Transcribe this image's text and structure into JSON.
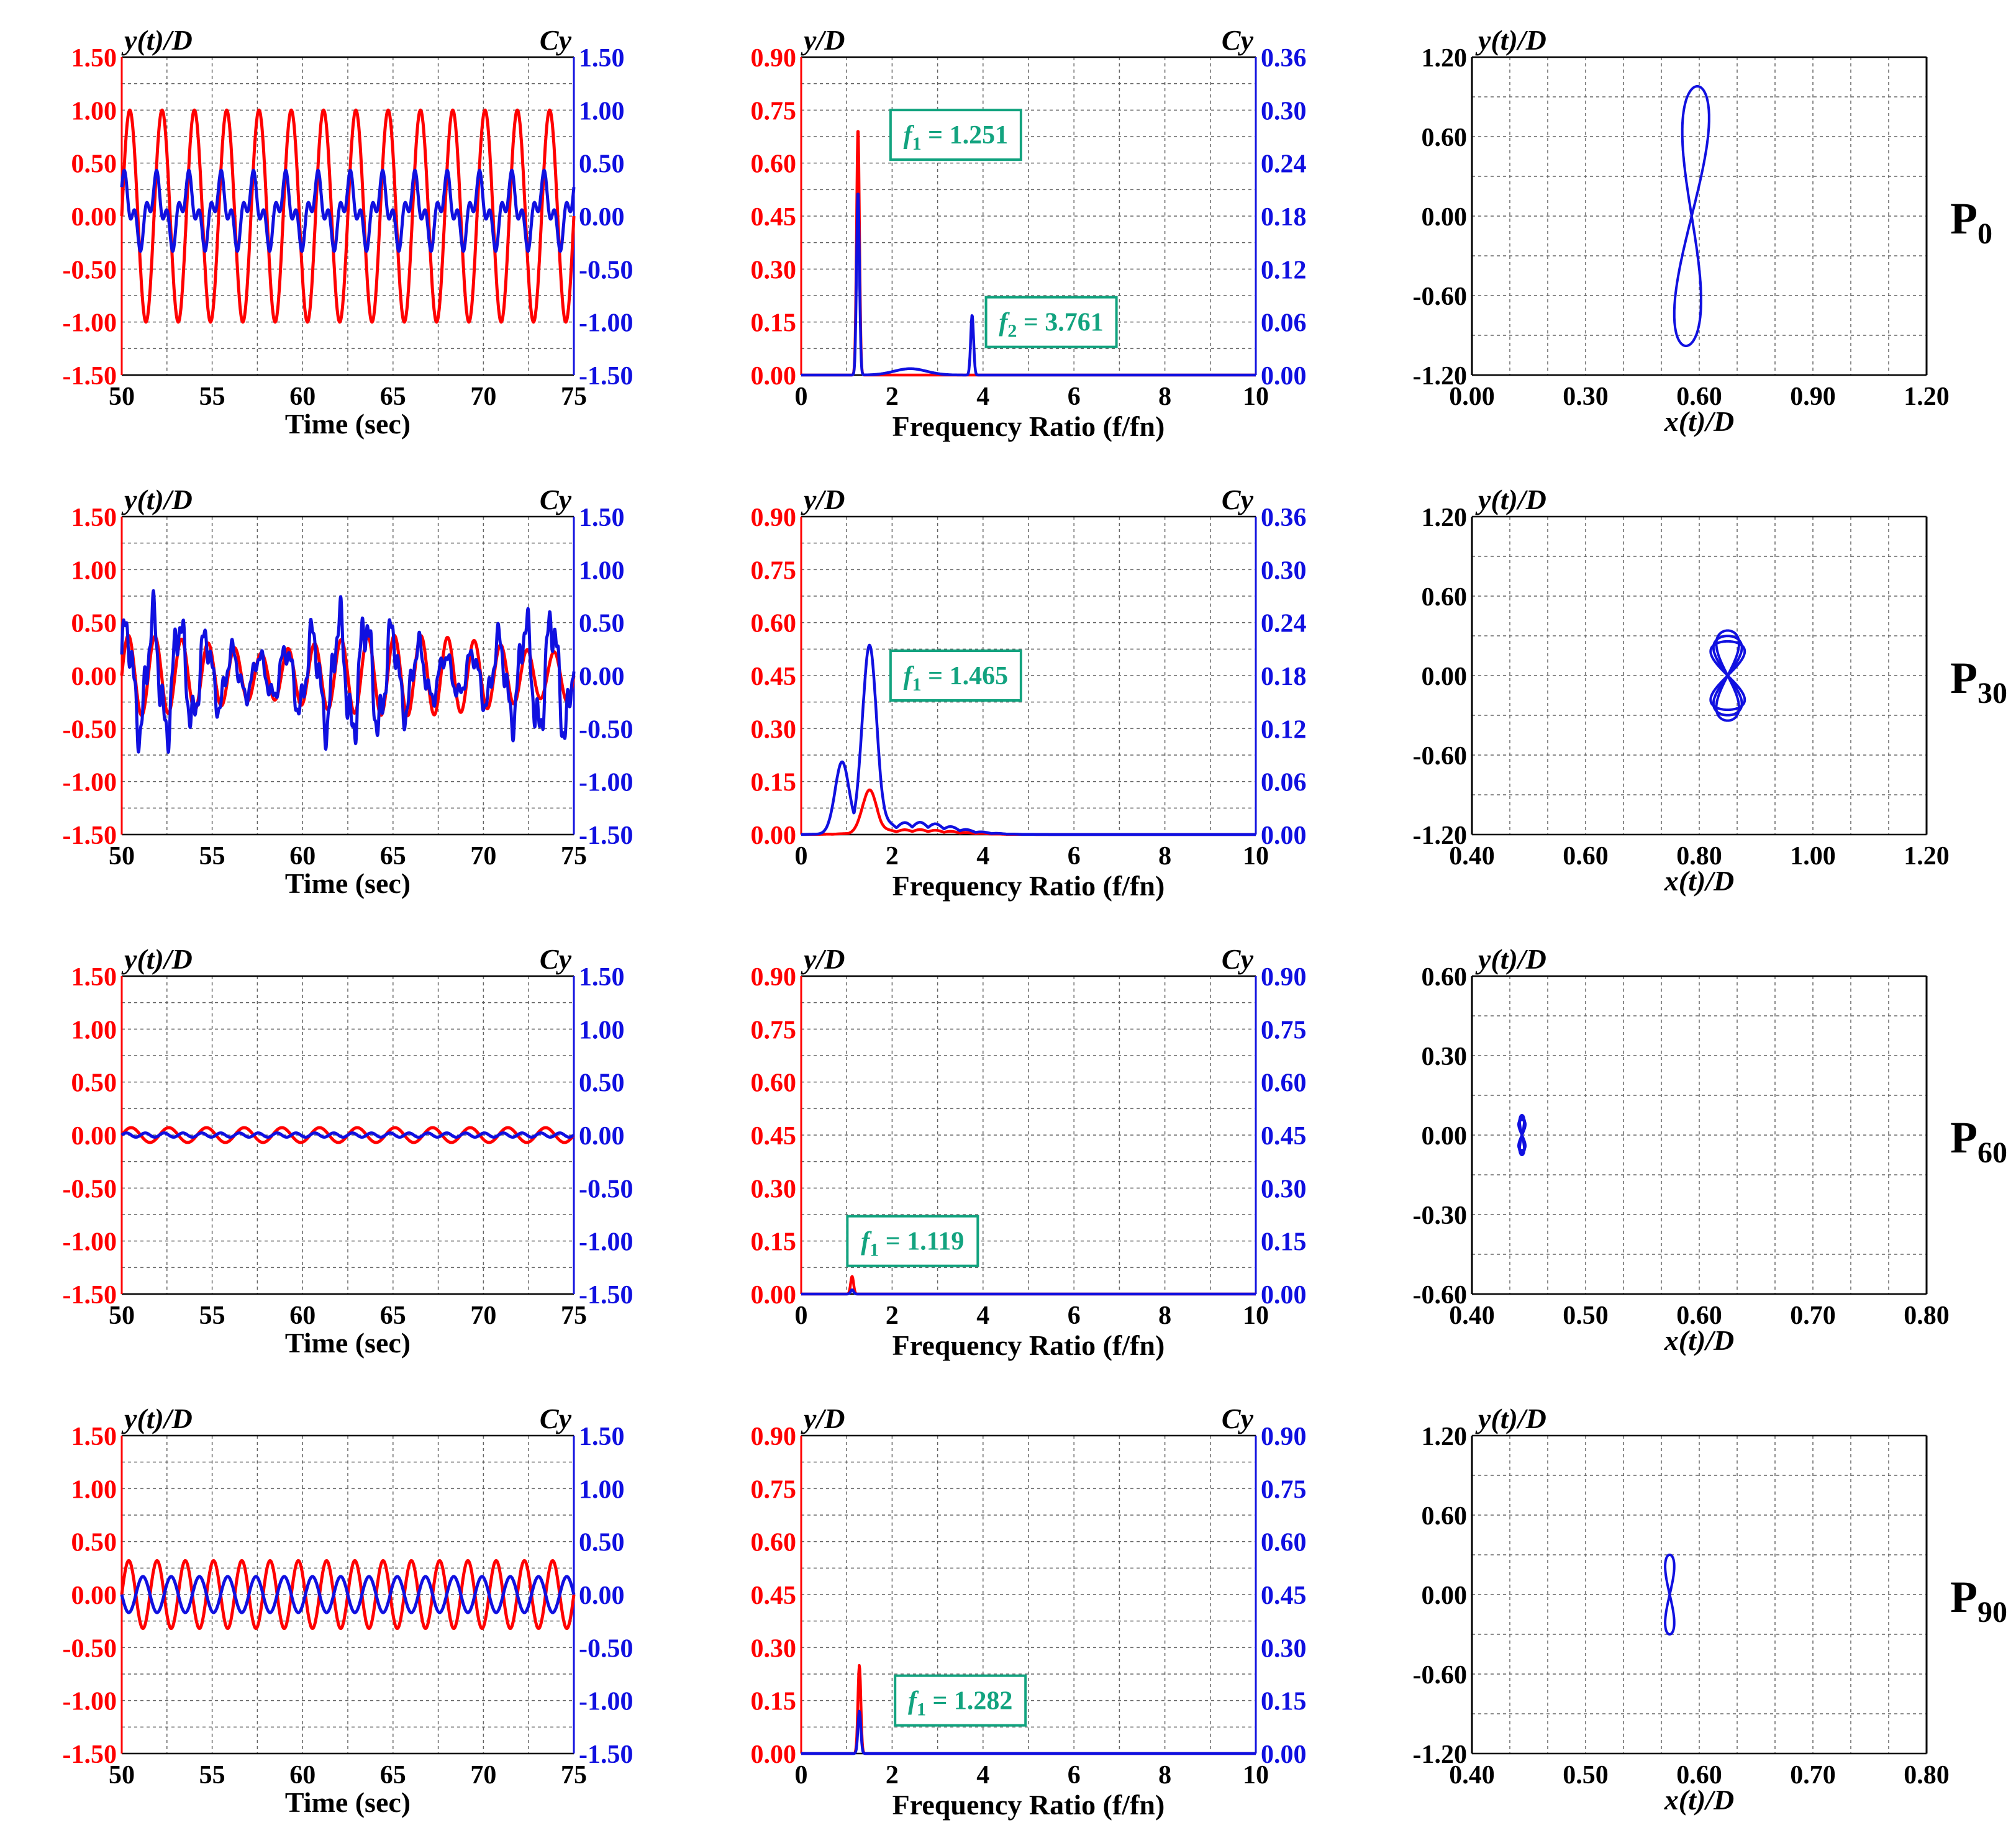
{
  "colors": {
    "red": "#ff0000",
    "blue": "#1010e0",
    "annot": "#12a37f",
    "grid": "#666666"
  },
  "time_axis": {
    "xlabel": "Time (sec)",
    "xticks": [
      "50",
      "55",
      "60",
      "65",
      "70",
      "75"
    ],
    "left_label": "y(t)/D",
    "right_label": "Cy",
    "left_ticks": [
      "1.50",
      "1.00",
      "0.50",
      "0.00",
      "-0.50",
      "-1.00",
      "-1.50"
    ],
    "right_ticks": [
      "1.50",
      "1.00",
      "0.50",
      "0.00",
      "-0.50",
      "-1.00",
      "-1.50"
    ]
  },
  "freq_axis": {
    "xlabel": "Frequency Ratio (f/fn)",
    "xticks": [
      "0",
      "2",
      "4",
      "6",
      "8",
      "10"
    ],
    "left_label": "y/D",
    "right_label": "Cy",
    "left_ticks": [
      "0.90",
      "0.75",
      "0.60",
      "0.45",
      "0.30",
      "0.15",
      "0.00"
    ]
  },
  "orbit_axis": {
    "xlabel": "x(t)/D",
    "ylabel": "y(t)/D"
  },
  "rows": [
    {
      "row_label": "P",
      "row_label_sub": "0",
      "time_series": {
        "type": "line",
        "x_range": [
          50,
          75
        ],
        "y_range": [
          -1.5,
          1.5
        ],
        "series": [
          {
            "color": "#ff0000",
            "shape": "sine",
            "amplitude": 1.0,
            "cycles": 14,
            "offset": 0.0
          },
          {
            "color": "#1010e0",
            "shape": "two-harmonic",
            "amplitude": 0.32,
            "cycles": 14,
            "offset": 0.05
          }
        ]
      },
      "spectrum": {
        "type": "line",
        "x_range": [
          0,
          10
        ],
        "y_range_left": [
          0,
          0.9
        ],
        "right_ticks": [
          "0.36",
          "0.30",
          "0.24",
          "0.18",
          "0.12",
          "0.06",
          "0.00"
        ],
        "peaks": [
          {
            "color": "#ff0000",
            "f": 1.25,
            "y": 0.7
          },
          {
            "color": "#1010e0",
            "f": 1.25,
            "y": 0.52
          },
          {
            "color": "#1010e0",
            "f": 3.76,
            "y": 0.17
          }
        ],
        "annotations": [
          {
            "label": "f1 = 1.251",
            "sym": "f",
            "sub": "1",
            "rest": " = 1.251",
            "f": 3.4,
            "y": 0.68
          },
          {
            "label": "f2 = 3.761",
            "sym": "f",
            "sub": "2",
            "rest": " = 3.761",
            "f": 5.5,
            "y": 0.15
          }
        ]
      },
      "orbit": {
        "type": "line",
        "x_range": [
          0.0,
          1.2
        ],
        "y_range": [
          -1.2,
          1.2
        ],
        "xticks": [
          "0.00",
          "0.30",
          "0.60",
          "0.90",
          "1.20"
        ],
        "yticks": [
          "1.20",
          "0.60",
          "0.00",
          "-0.60",
          "-1.20"
        ],
        "center": [
          0.58,
          0.0
        ],
        "ax": 0.035,
        "ay": 0.98
      }
    },
    {
      "row_label": "P",
      "row_label_sub": "30",
      "time_series": {
        "type": "line",
        "x_range": [
          50,
          75
        ],
        "y_range": [
          -1.5,
          1.5
        ],
        "series": [
          {
            "color": "#ff0000",
            "shape": "beating",
            "amplitude": 0.38,
            "cycles": 17,
            "offset": 0.0
          },
          {
            "color": "#1010e0",
            "shape": "irregular",
            "amplitude": 0.62,
            "cycles": 17,
            "offset": 0.0
          }
        ]
      },
      "spectrum": {
        "type": "line",
        "x_range": [
          0,
          10
        ],
        "y_range_left": [
          0,
          0.9
        ],
        "right_ticks": [
          "0.36",
          "0.30",
          "0.24",
          "0.18",
          "0.12",
          "0.06",
          "0.00"
        ],
        "peaks": [
          {
            "color": "#ff0000",
            "f": 1.5,
            "y": 0.12
          },
          {
            "color": "#1010e0",
            "f": 1.5,
            "y": 0.52
          },
          {
            "color": "#1010e0",
            "f": 0.9,
            "y": 0.2
          }
        ],
        "annotations": [
          {
            "label": "f1 = 1.465",
            "sym": "f",
            "sub": "1",
            "rest": " = 1.465",
            "f": 3.4,
            "y": 0.45
          }
        ]
      },
      "orbit": {
        "type": "line",
        "x_range": [
          0.4,
          1.2
        ],
        "y_range": [
          -1.2,
          1.2
        ],
        "xticks": [
          "0.40",
          "0.60",
          "0.80",
          "1.00",
          "1.20"
        ],
        "yticks": [
          "1.20",
          "0.60",
          "0.00",
          "-0.60",
          "-1.20"
        ],
        "center": [
          0.85,
          0.0
        ],
        "ax": 0.02,
        "ay": 0.34
      }
    },
    {
      "row_label": "P",
      "row_label_sub": "60",
      "time_series": {
        "type": "line",
        "x_range": [
          50,
          75
        ],
        "y_range": [
          -1.5,
          1.5
        ],
        "series": [
          {
            "color": "#ff0000",
            "shape": "sine",
            "amplitude": 0.07,
            "cycles": 12,
            "offset": 0.0
          },
          {
            "color": "#1010e0",
            "shape": "sine",
            "amplitude": 0.02,
            "cycles": 24,
            "offset": 0.0
          }
        ]
      },
      "spectrum": {
        "type": "line",
        "x_range": [
          0,
          10
        ],
        "y_range_left": [
          0,
          0.9
        ],
        "right_ticks": [
          "0.90",
          "0.75",
          "0.60",
          "0.45",
          "0.30",
          "0.15",
          "0.00"
        ],
        "peaks": [
          {
            "color": "#ff0000",
            "f": 1.12,
            "y": 0.05
          },
          {
            "color": "#1010e0",
            "f": 1.12,
            "y": 0.012
          }
        ],
        "annotations": [
          {
            "label": "f1 = 1.119",
            "sym": "f",
            "sub": "1",
            "rest": " = 1.119",
            "f": 2.45,
            "y": 0.15
          }
        ]
      },
      "orbit": {
        "type": "line",
        "x_range": [
          0.4,
          0.8
        ],
        "y_range": [
          -0.6,
          0.6
        ],
        "xticks": [
          "0.40",
          "0.50",
          "0.60",
          "0.70",
          "0.80"
        ],
        "yticks": [
          "0.60",
          "0.30",
          "0.00",
          "-0.30",
          "-0.60"
        ],
        "center": [
          0.444,
          0.0
        ],
        "ax": 0.002,
        "ay": 0.075
      }
    },
    {
      "row_label": "P",
      "row_label_sub": "90",
      "time_series": {
        "type": "line",
        "x_range": [
          50,
          75
        ],
        "y_range": [
          -1.5,
          1.5
        ],
        "series": [
          {
            "color": "#ff0000",
            "shape": "sine",
            "amplitude": 0.32,
            "cycles": 16,
            "offset": 0.0
          },
          {
            "color": "#1010e0",
            "shape": "sine-inverted",
            "amplitude": 0.17,
            "cycles": 16,
            "offset": 0.0
          }
        ]
      },
      "spectrum": {
        "type": "line",
        "x_range": [
          0,
          10
        ],
        "y_range_left": [
          0,
          0.9
        ],
        "right_ticks": [
          "0.90",
          "0.75",
          "0.60",
          "0.45",
          "0.30",
          "0.15",
          "0.00"
        ],
        "peaks": [
          {
            "color": "#ff0000",
            "f": 1.28,
            "y": 0.25
          },
          {
            "color": "#1010e0",
            "f": 1.28,
            "y": 0.12
          }
        ],
        "annotations": [
          {
            "label": "f1 = 1.282",
            "sym": "f",
            "sub": "1",
            "rest": " = 1.282",
            "f": 3.5,
            "y": 0.15
          }
        ]
      },
      "orbit": {
        "type": "line",
        "x_range": [
          0.4,
          0.8
        ],
        "y_range": [
          -1.2,
          1.2
        ],
        "xticks": [
          "0.40",
          "0.50",
          "0.60",
          "0.70",
          "0.80"
        ],
        "yticks": [
          "1.20",
          "0.60",
          "0.00",
          "-0.60",
          "-1.20"
        ],
        "center": [
          0.574,
          0.0
        ],
        "ax": 0.004,
        "ay": 0.3
      }
    }
  ]
}
